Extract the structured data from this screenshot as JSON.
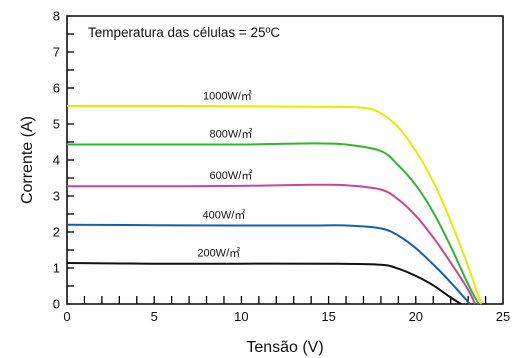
{
  "chart_data": {
    "type": "line",
    "title": "",
    "annotation": "Temperatura das células = 25ºC",
    "xlabel": "Tensão (V)",
    "ylabel": "Corrente (A)",
    "xlim": [
      0,
      25
    ],
    "ylim": [
      0,
      8
    ],
    "x_ticks": [
      0,
      5,
      10,
      15,
      20,
      25
    ],
    "y_ticks": [
      0,
      1,
      2,
      3,
      4,
      5,
      6,
      7,
      8
    ],
    "grid": false,
    "legend": "inline labels above each curve",
    "series": [
      {
        "name": "1000W/㎡",
        "color": "#e8e800",
        "x": [
          0,
          5,
          10,
          15,
          17,
          18,
          19,
          20,
          21,
          22,
          23,
          23.5,
          23.75
        ],
        "y": [
          5.5,
          5.5,
          5.49,
          5.48,
          5.45,
          5.3,
          4.9,
          4.25,
          3.4,
          2.3,
          1.05,
          0.35,
          0
        ]
      },
      {
        "name": "800W/㎡",
        "color": "#2eb82e",
        "x": [
          0,
          5,
          10,
          14,
          16,
          18,
          19,
          20,
          21,
          22,
          23,
          23.6
        ],
        "y": [
          4.43,
          4.43,
          4.43,
          4.46,
          4.43,
          4.25,
          3.85,
          3.3,
          2.55,
          1.6,
          0.55,
          0
        ]
      },
      {
        "name": "600W/㎡",
        "color": "#cc4499",
        "x": [
          0,
          5,
          10,
          14,
          16,
          18,
          19,
          20,
          21,
          22,
          23,
          23.4
        ],
        "y": [
          3.27,
          3.27,
          3.28,
          3.31,
          3.3,
          3.18,
          2.9,
          2.45,
          1.85,
          1.15,
          0.4,
          0
        ]
      },
      {
        "name": "400W/㎡",
        "color": "#1060b8",
        "x": [
          0,
          5,
          10,
          14,
          16,
          18,
          19,
          20,
          21,
          22,
          23.1
        ],
        "y": [
          2.2,
          2.19,
          2.18,
          2.18,
          2.18,
          2.1,
          1.9,
          1.55,
          1.1,
          0.6,
          0
        ]
      },
      {
        "name": "200W/㎡",
        "color": "#111111",
        "x": [
          0,
          5,
          10,
          15,
          18,
          19,
          20,
          21,
          22,
          22.6
        ],
        "y": [
          1.14,
          1.12,
          1.12,
          1.12,
          1.09,
          0.98,
          0.78,
          0.52,
          0.18,
          0
        ]
      }
    ],
    "curve_label_x": [
      9.2,
      9.4,
      9.4,
      9.0,
      8.7
    ]
  }
}
